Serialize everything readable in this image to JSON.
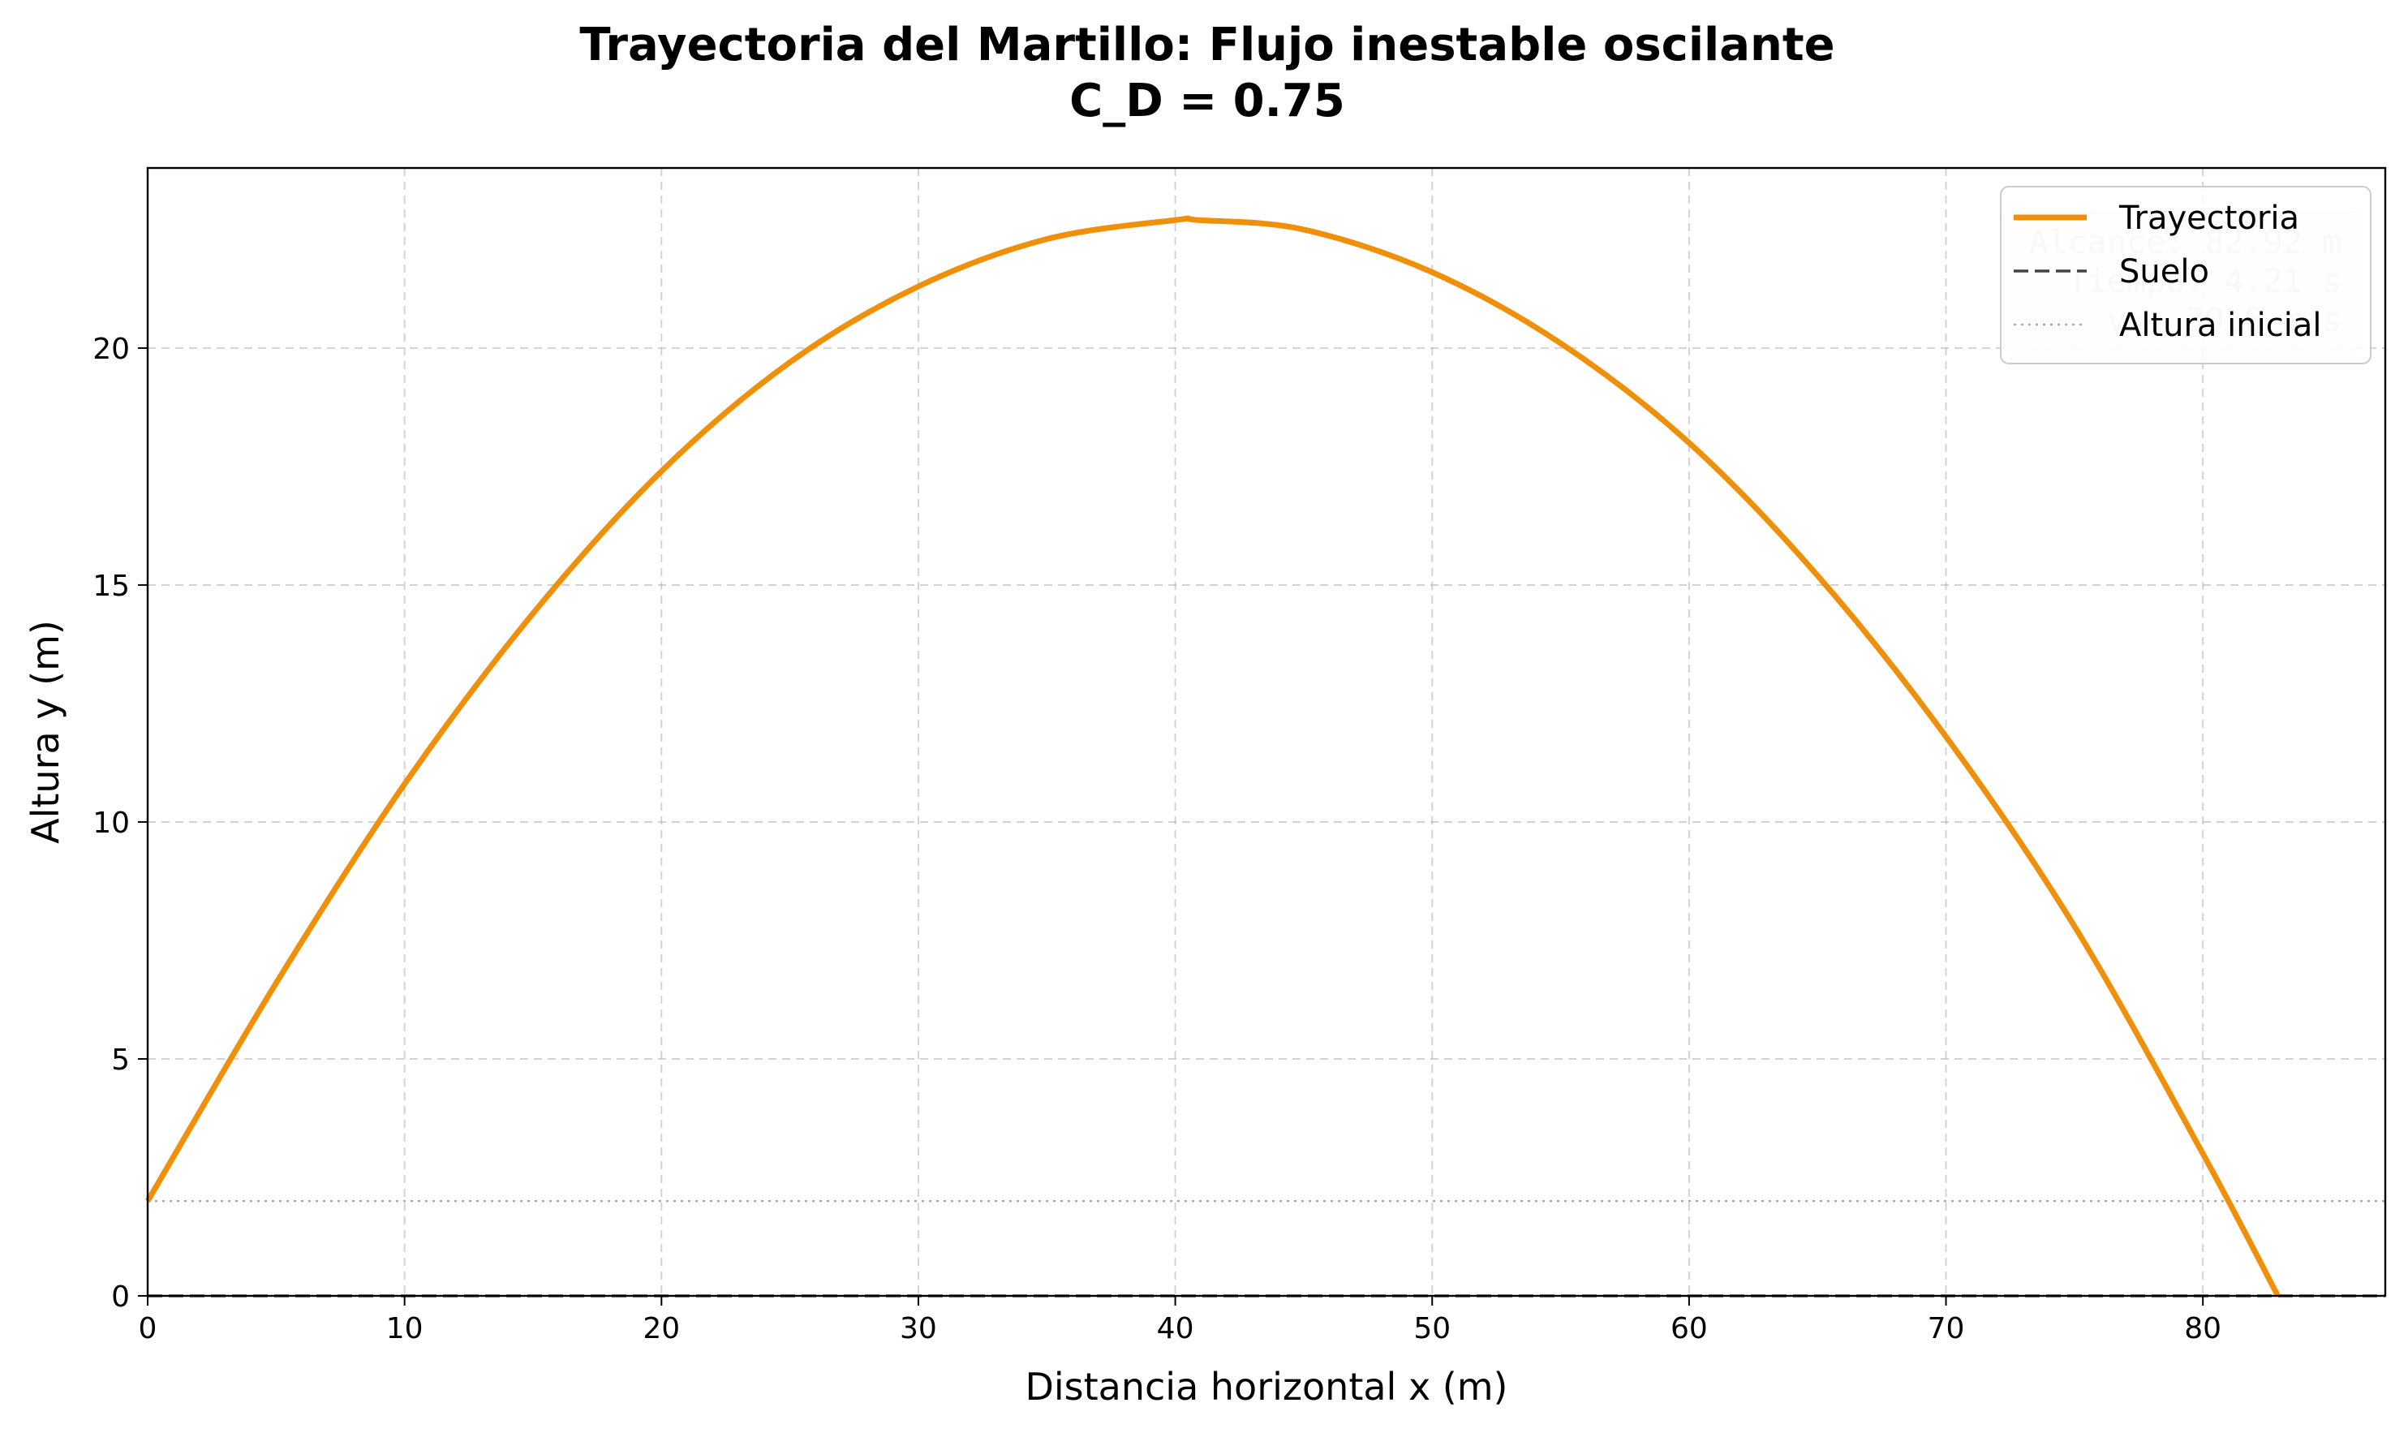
{
  "chart_data": {
    "type": "line",
    "title": "Trayectoria del Martillo: Flujo inestable oscilante",
    "subtitle": "C_D = 0.75",
    "xlabel": "Distancia horizontal x (m)",
    "ylabel": "Altura y (m)",
    "xlim": [
      0,
      87.1
    ],
    "ylim": [
      0,
      23.8
    ],
    "xticks": [
      0,
      10,
      20,
      30,
      40,
      50,
      60,
      70,
      80
    ],
    "yticks": [
      0,
      5,
      10,
      15,
      20
    ],
    "grid": true,
    "legend_position": "top-right",
    "series": [
      {
        "name": "Trayectoria",
        "color": "#f0900a",
        "style": "solid",
        "x": [
          0,
          5,
          10,
          15,
          20,
          25,
          30,
          35,
          40,
          40.9,
          45,
          50,
          55,
          60,
          65,
          70,
          75,
          80,
          82.92
        ],
        "y": [
          2.0,
          6.6,
          10.8,
          14.4,
          17.4,
          19.7,
          21.3,
          22.3,
          22.7,
          22.7,
          22.5,
          21.6,
          20.1,
          18.0,
          15.2,
          11.8,
          7.8,
          3.0,
          0.0
        ]
      },
      {
        "name": "Suelo",
        "color": "#444444",
        "style": "dashed",
        "x": [
          0,
          87.1
        ],
        "y": [
          0,
          0
        ]
      },
      {
        "name": "Altura inicial",
        "color": "#aaaaaa",
        "style": "dotted",
        "x": [
          0,
          87.1
        ],
        "y": [
          2,
          2
        ]
      }
    ],
    "annotations": [
      "Alcance: 82.92 m",
      "Tiempo: 4.21 s",
      "v₀: 30.0 m/s"
    ]
  }
}
